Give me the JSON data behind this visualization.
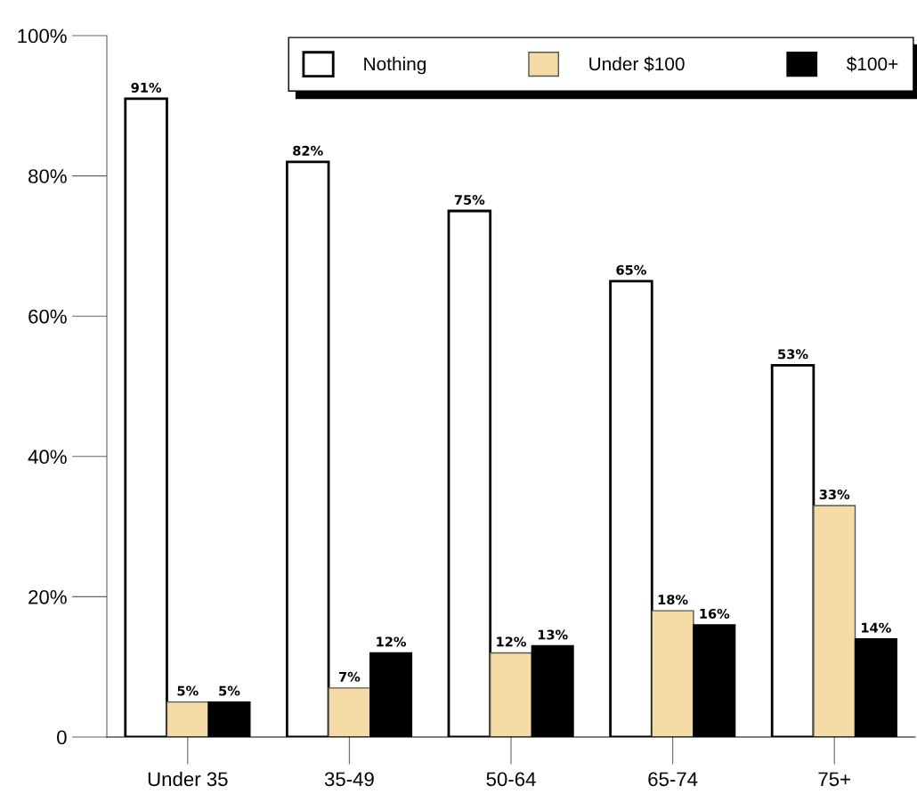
{
  "chart_data": {
    "type": "bar",
    "categories": [
      "Under 35",
      "35-49",
      "50-64",
      "65-74",
      "75+"
    ],
    "series": [
      {
        "name": "Nothing",
        "color": "#ffffff",
        "values": [
          91,
          82,
          75,
          65,
          53
        ],
        "value_labels": [
          "91%",
          "82%",
          "75%",
          "65%",
          "53%"
        ]
      },
      {
        "name": "Under $100",
        "color": "#f5dba6",
        "values": [
          5,
          7,
          12,
          18,
          33
        ],
        "value_labels": [
          "5%",
          "7%",
          "12%",
          "18%",
          "33%"
        ]
      },
      {
        "name": "$100+",
        "color": "#000000",
        "values": [
          5,
          12,
          13,
          16,
          14
        ],
        "value_labels": [
          "5%",
          "12%",
          "13%",
          "16%",
          "14%"
        ]
      }
    ],
    "ylim": [
      0,
      100
    ],
    "yticks": [
      0,
      {
        "value": 20,
        "label": "20%"
      },
      {
        "value": 40,
        "label": "40%"
      },
      {
        "value": 60,
        "label": "60%"
      },
      {
        "value": 80,
        "label": "80%"
      },
      {
        "value": 100,
        "label": "100%"
      }
    ],
    "legend": "top right"
  }
}
